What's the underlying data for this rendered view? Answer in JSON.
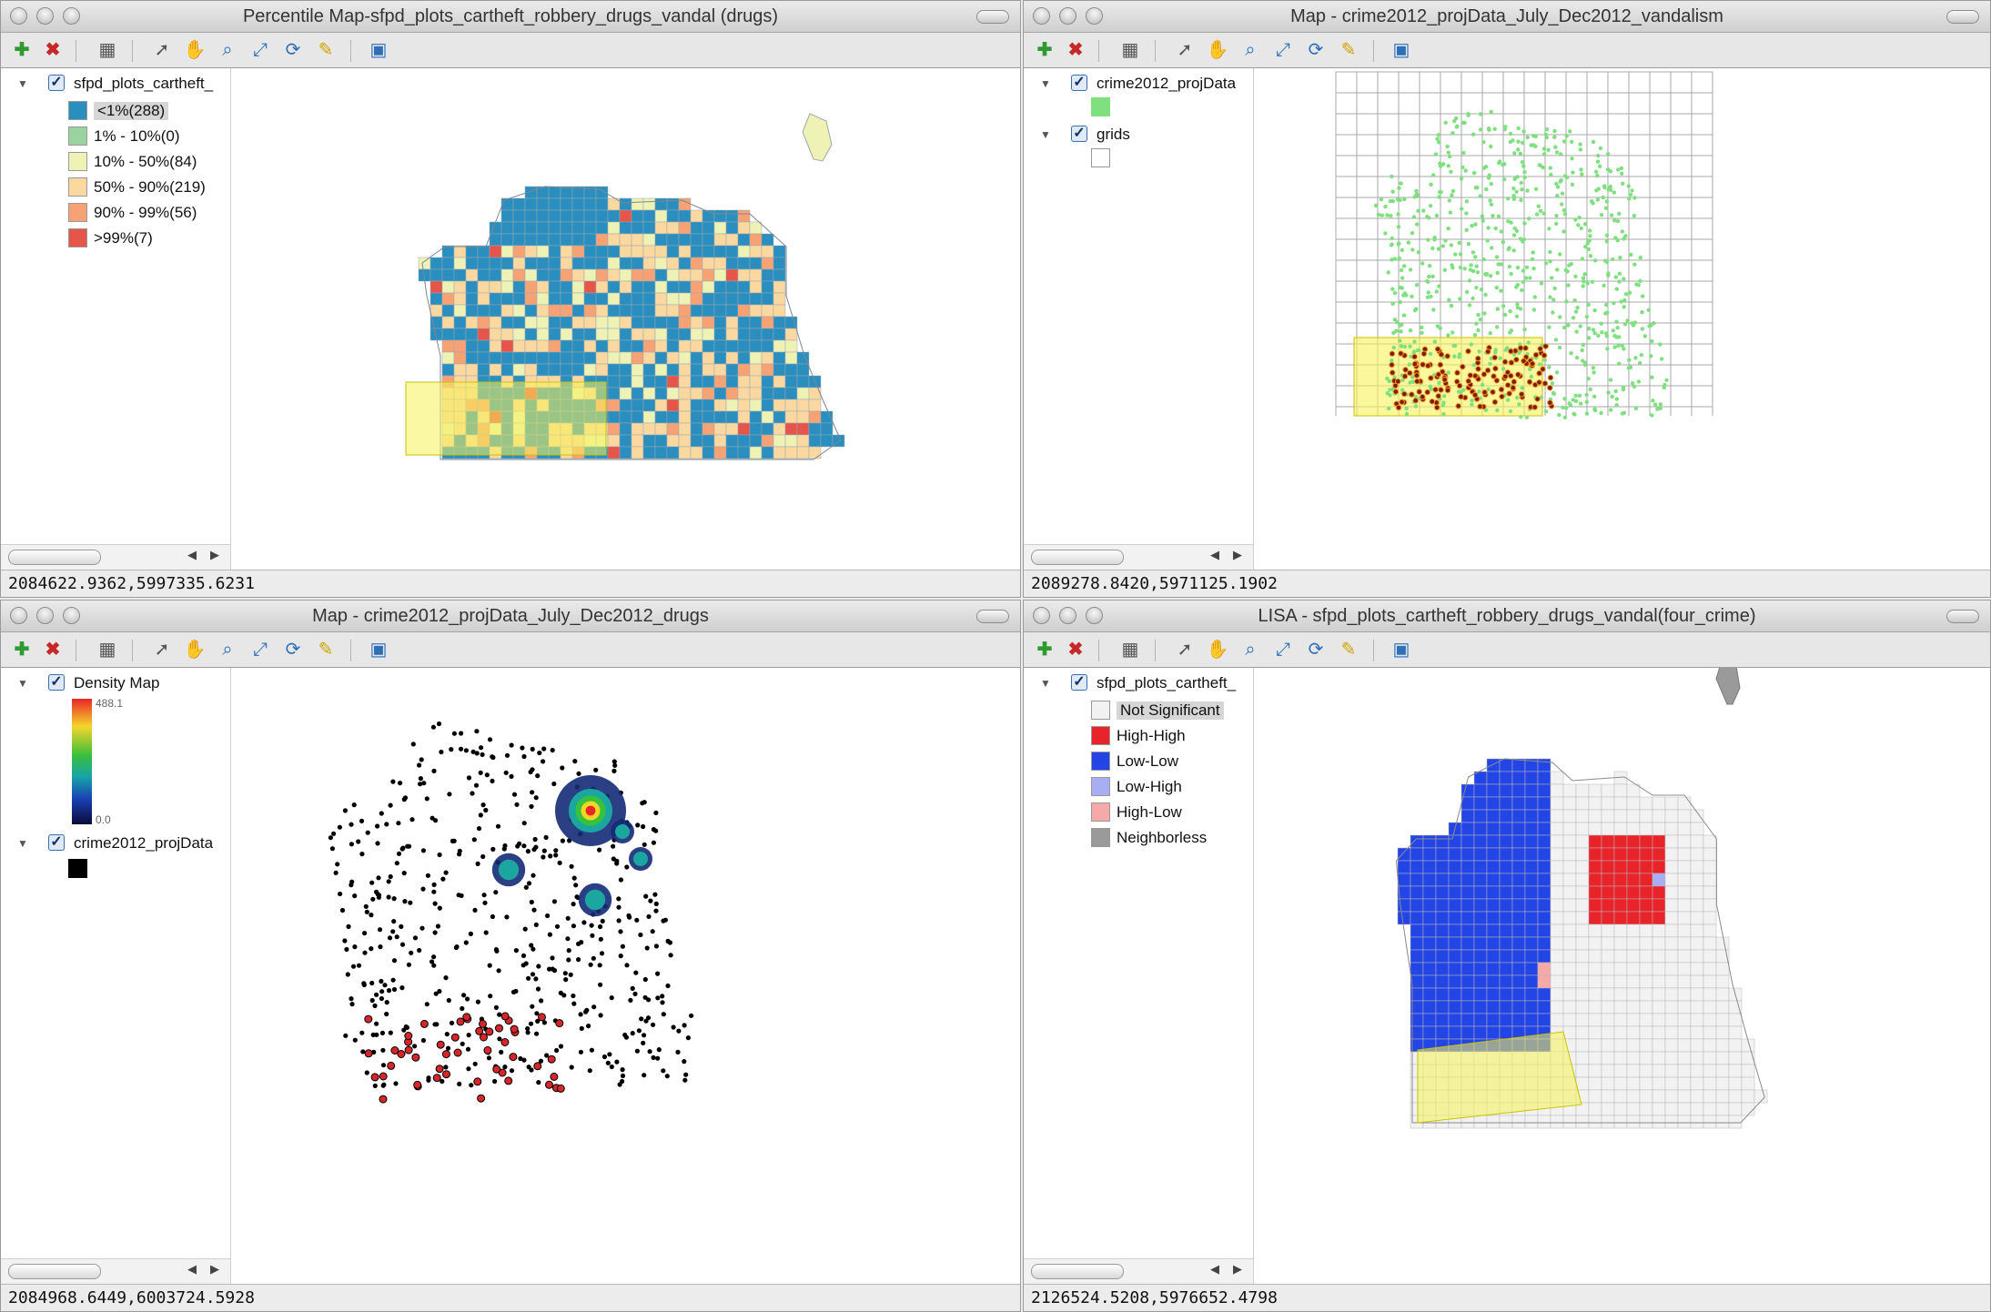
{
  "windows": {
    "tl": {
      "title": "Percentile Map-sfpd_plots_cartheft_robbery_drugs_vandal (drugs)",
      "layer": "sfpd_plots_cartheft_",
      "legend": [
        {
          "label": "<1%(288)",
          "color": "#2a8fbf"
        },
        {
          "label": "1% - 10%(0)",
          "color": "#9bd3a0"
        },
        {
          "label": "10% - 50%(84)",
          "color": "#eef2b5"
        },
        {
          "label": "50% - 90%(219)",
          "color": "#fbd8a0"
        },
        {
          "label": "90% - 99%(56)",
          "color": "#f7a275"
        },
        {
          "label": ">99%(7)",
          "color": "#e6554a"
        }
      ],
      "status": "2084622.9362,5997335.6231"
    },
    "tr": {
      "title": "Map - crime2012_projData_July_Dec2012_vandalism",
      "layer1": "crime2012_projData",
      "layer1_color": "#7ee07e",
      "layer2": "grids",
      "status": "2089278.8420,5971125.1902"
    },
    "bl": {
      "title": "Map - crime2012_projData_July_Dec2012_drugs",
      "layer1": "Density Map",
      "density_max": "488.1",
      "density_min": "0.0",
      "layer2": "crime2012_projData",
      "status": "2084968.6449,6003724.5928"
    },
    "br": {
      "title": "LISA - sfpd_plots_cartheft_robbery_drugs_vandal(four_crime)",
      "layer": "sfpd_plots_cartheft_",
      "legend": [
        {
          "label": "Not Significant",
          "color": "#f2f2f2"
        },
        {
          "label": "High-High",
          "color": "#e8232a"
        },
        {
          "label": "Low-Low",
          "color": "#2445e6"
        },
        {
          "label": "Low-High",
          "color": "#a9aef2"
        },
        {
          "label": "High-Low",
          "color": "#f5a9a9"
        },
        {
          "label": "Neighborless",
          "color": "#9a9a9a"
        }
      ],
      "status": "2126524.5208,5976652.4798"
    }
  },
  "icons": [
    "add-layer-icon",
    "remove-layer-icon",
    "table-icon",
    "select-arrow-icon",
    "pan-hand-icon",
    "zoom-icon",
    "fit-extent-icon",
    "refresh-icon",
    "brush-icon",
    "save-icon"
  ]
}
